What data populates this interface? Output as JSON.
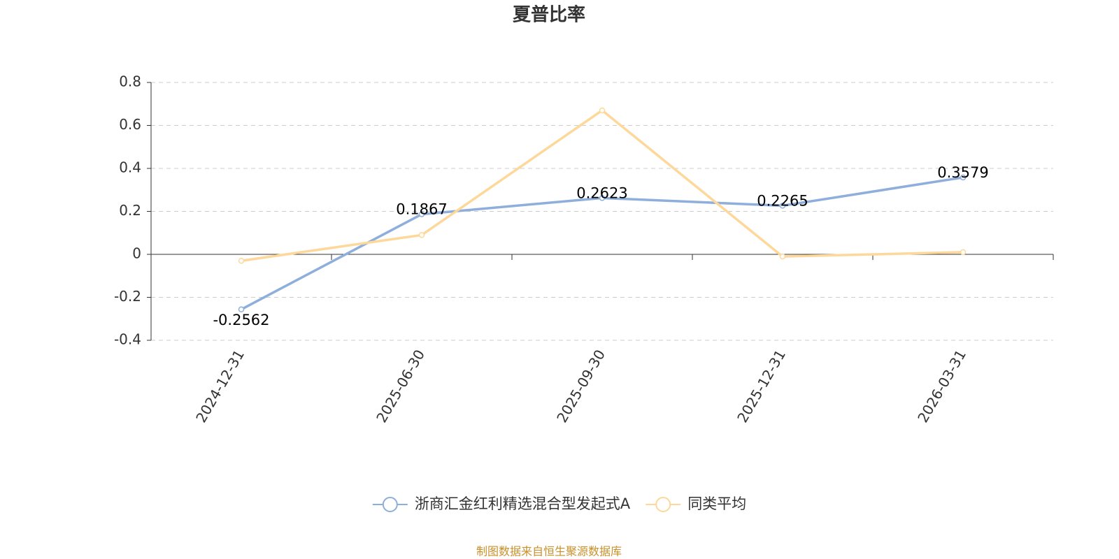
{
  "chart_data": {
    "type": "line",
    "title": "夏普比率",
    "categories": [
      "2024-12-31",
      "2025-06-30",
      "2025-09-30",
      "2025-12-31",
      "2026-03-31"
    ],
    "series": [
      {
        "name": "浙商汇金红利精选混合型发起式A",
        "color": "#8eaedb",
        "values": [
          -0.2562,
          0.1867,
          0.2623,
          0.2265,
          0.3579
        ],
        "show_labels": true
      },
      {
        "name": "同类平均",
        "color": "#fdd89a",
        "values": [
          -0.03,
          0.09,
          0.67,
          -0.01,
          0.01
        ],
        "show_labels": false
      }
    ],
    "ylim": [
      -0.4,
      0.8
    ],
    "yticks": [
      -0.4,
      -0.2,
      0,
      0.2,
      0.4,
      0.6,
      0.8
    ],
    "grid": true,
    "legend": "bottom",
    "source": "制图数据来自恒生聚源数据库"
  }
}
